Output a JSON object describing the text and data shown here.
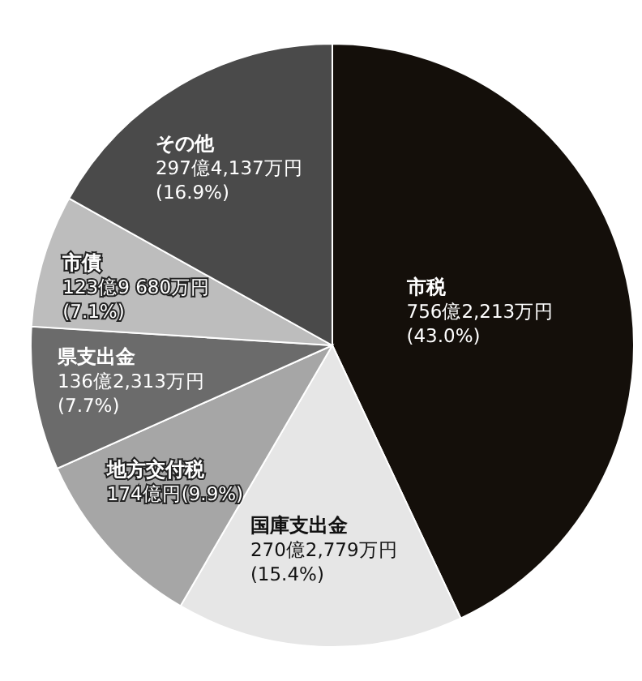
{
  "chart_data": {
    "type": "pie",
    "categories": [
      "市税",
      "国庫支出金",
      "地方交付税",
      "県支出金",
      "市債",
      "その他"
    ],
    "values": [
      43.0,
      15.4,
      9.9,
      7.7,
      7.1,
      16.9
    ],
    "colors": [
      "#140f0a",
      "#e6e6e6",
      "#a6a6a6",
      "#6b6b6b",
      "#bdbdbd",
      "#4a4a4a"
    ],
    "value_labels": [
      "756億2,213万円\n(43.0%)",
      "270億2,779万円\n(15.4%)",
      "174億円(9.9%)",
      "136億2,313万円\n(7.7%)",
      "123億9 680万円\n(7.1%)",
      "297億4,137万円\n(16.9%)"
    ],
    "legend": false
  }
}
